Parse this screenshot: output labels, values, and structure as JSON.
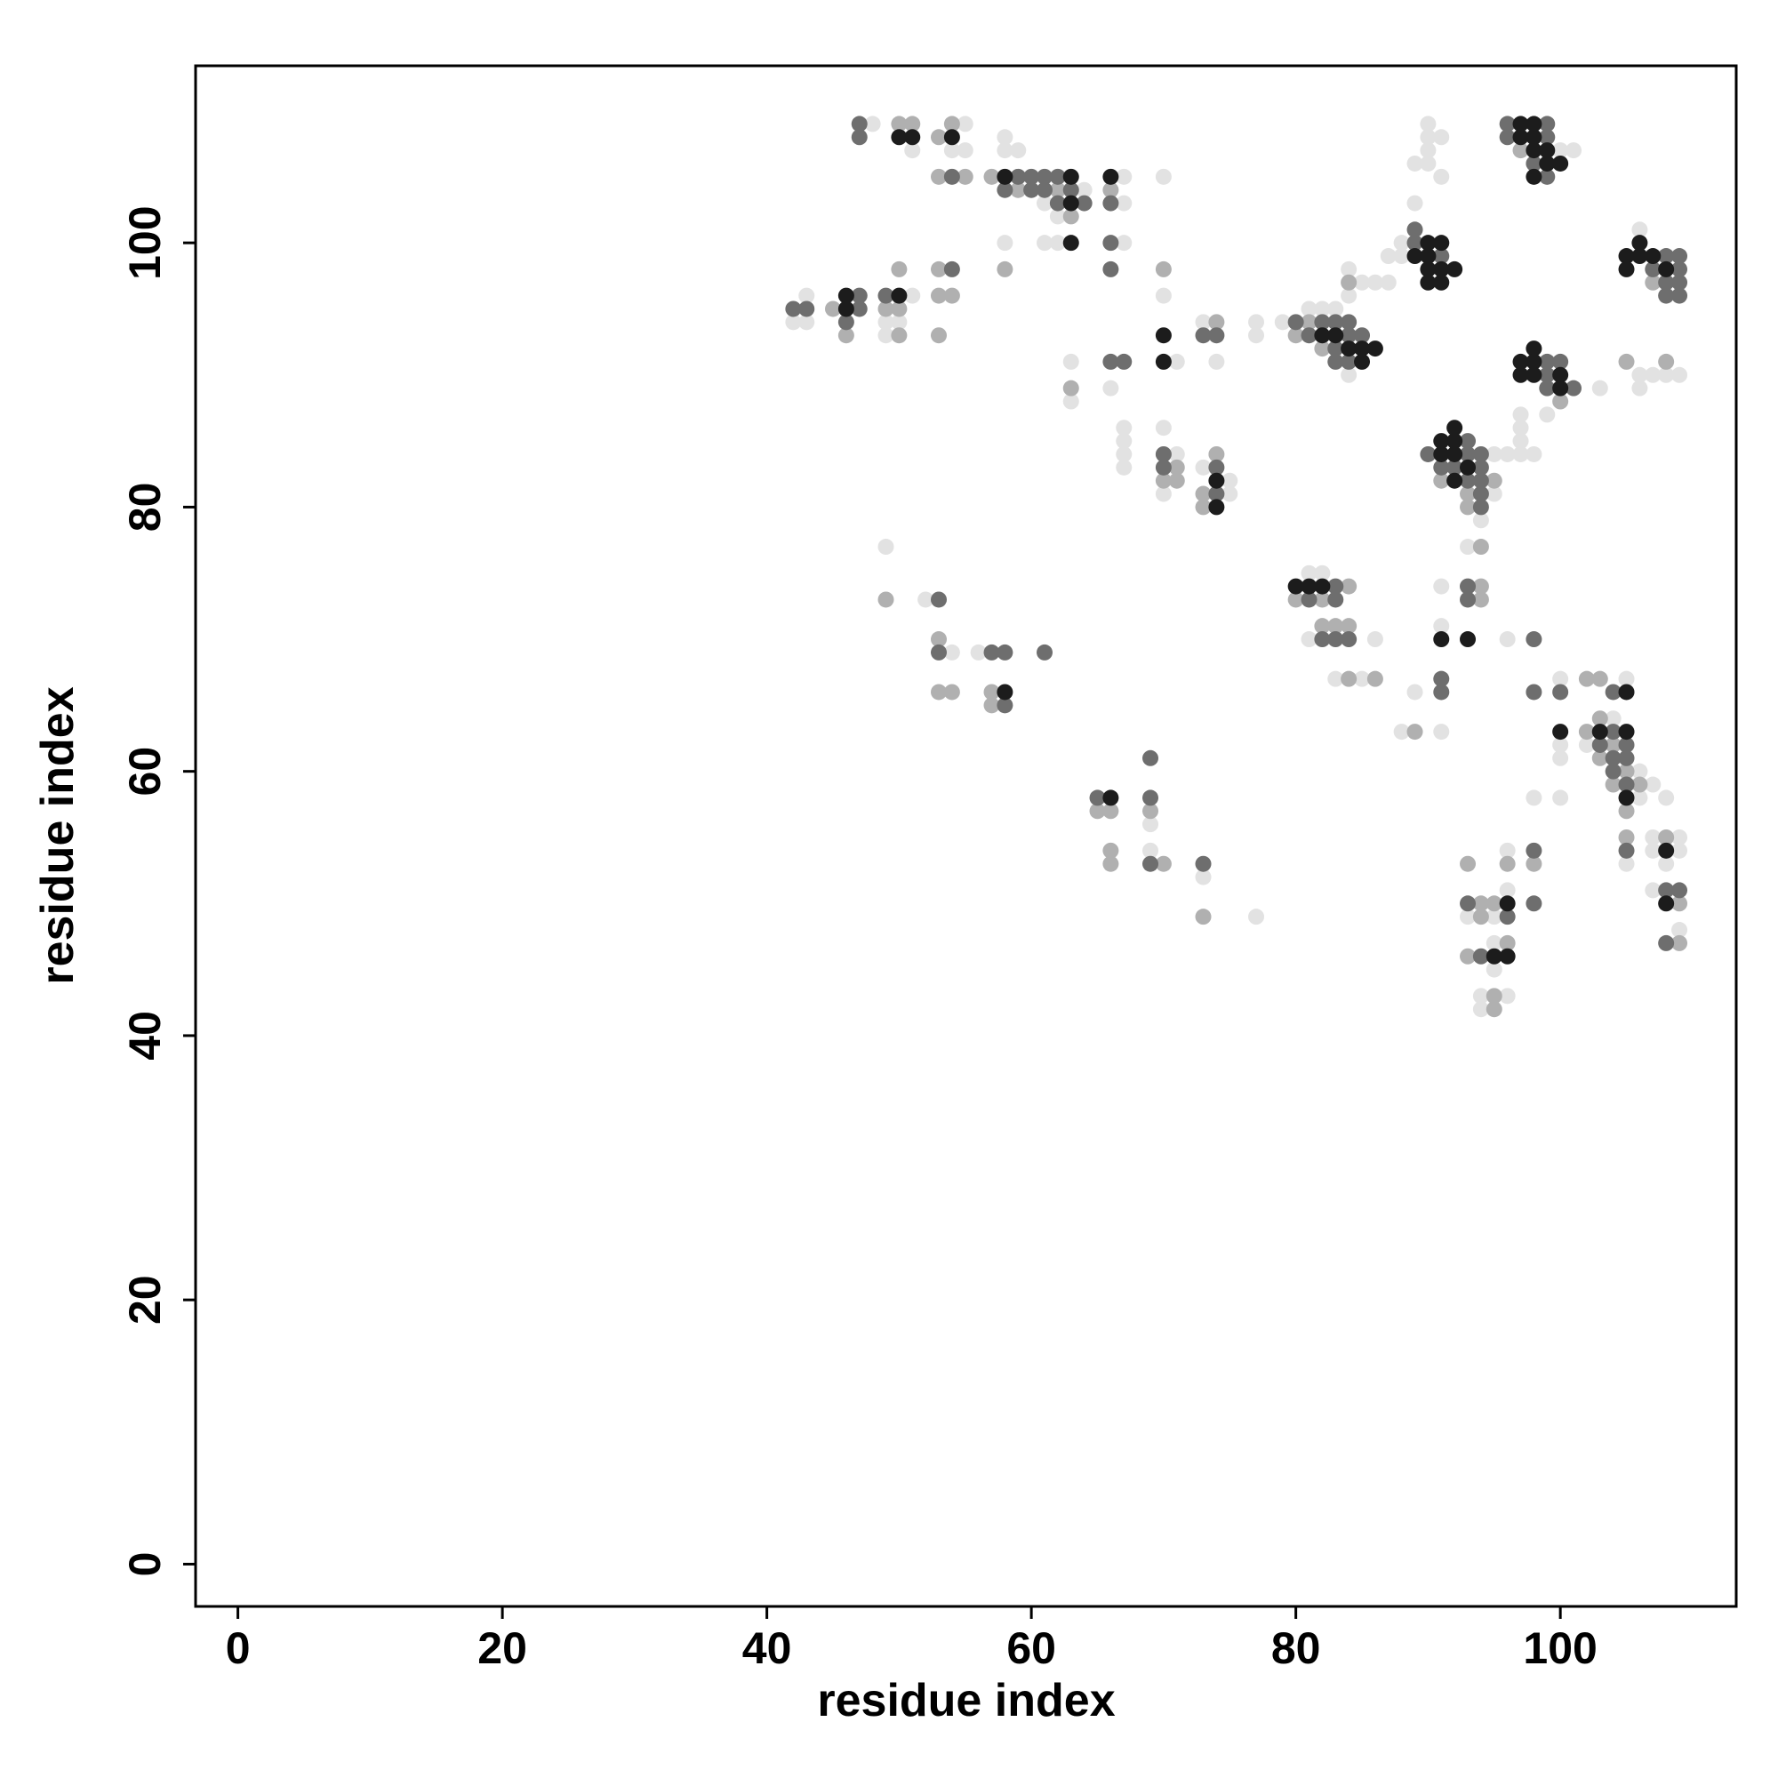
{
  "chart_data": {
    "type": "scatter",
    "xlabel": "residue index",
    "ylabel": "residue index",
    "xlim": [
      -3.2,
      113.3
    ],
    "ylim": [
      -3.2,
      113.4
    ],
    "xticks": [
      0,
      20,
      40,
      60,
      80,
      100
    ],
    "yticks": [
      0,
      20,
      40,
      60,
      80,
      100
    ],
    "series": [
      {
        "color": "#e2e2e2",
        "x": [
          48,
          55,
          51,
          54,
          55,
          58,
          58,
          59,
          67,
          70,
          64,
          61,
          67,
          62,
          58,
          61,
          62,
          67,
          70,
          43,
          42,
          43,
          51,
          49,
          50,
          49,
          73,
          77,
          77,
          79,
          81,
          82,
          83,
          84,
          85,
          86,
          87,
          84,
          84,
          71,
          74,
          63,
          63,
          66,
          67,
          67,
          67,
          67,
          70,
          71,
          70,
          73,
          75,
          75,
          90,
          90,
          91,
          90,
          89,
          90,
          91,
          89,
          88,
          88,
          87,
          100,
          101,
          106,
          103,
          99,
          97,
          97,
          97,
          97,
          98,
          106,
          106,
          107,
          108,
          109,
          95,
          96,
          95,
          94,
          93,
          91,
          91,
          82,
          81,
          81,
          86,
          83,
          85,
          96,
          89,
          88,
          91,
          49,
          52,
          54,
          56,
          100,
          100,
          100,
          105,
          104,
          102,
          106,
          107,
          106,
          108,
          98,
          100,
          107,
          109,
          107,
          109,
          105,
          108,
          107,
          109,
          69,
          69,
          73,
          77,
          96,
          93,
          95,
          95,
          95,
          94,
          96,
          94,
          96
        ],
        "y": [
          109,
          109,
          107,
          107,
          107,
          108,
          107,
          107,
          105,
          105,
          104,
          103,
          103,
          102,
          100,
          100,
          100,
          100,
          96,
          96,
          94,
          94,
          96,
          94,
          94,
          93,
          94,
          94,
          93,
          94,
          95,
          95,
          95,
          96,
          97,
          97,
          97,
          98,
          90,
          91,
          91,
          91,
          88,
          89,
          86,
          85,
          84,
          83,
          86,
          84,
          81,
          83,
          82,
          81,
          109,
          108,
          108,
          107,
          106,
          106,
          105,
          103,
          100,
          99,
          99,
          107,
          107,
          101,
          89,
          87,
          87,
          86,
          85,
          84,
          84,
          89,
          90,
          90,
          90,
          90,
          84,
          84,
          81,
          79,
          77,
          74,
          71,
          75,
          75,
          70,
          70,
          67,
          67,
          70,
          66,
          63,
          63,
          77,
          73,
          69,
          69,
          67,
          62,
          61,
          67,
          64,
          62,
          60,
          59,
          58,
          58,
          58,
          58,
          55,
          55,
          54,
          54,
          53,
          53,
          51,
          48,
          56,
          54,
          52,
          49,
          54,
          49,
          49,
          47,
          45,
          43,
          43,
          42,
          51
        ]
      },
      {
        "color": "#b0b0b0",
        "x": [
          50,
          51,
          53,
          54,
          53,
          55,
          57,
          59,
          62,
          66,
          63,
          58,
          53,
          50,
          70,
          45,
          49,
          50,
          46,
          50,
          53,
          54,
          53,
          74,
          81,
          84,
          80,
          82,
          63,
          71,
          70,
          71,
          74,
          73,
          73,
          97,
          107,
          100,
          105,
          108,
          91,
          95,
          93,
          93,
          94,
          94,
          94,
          80,
          82,
          82,
          83,
          84,
          84,
          84,
          86,
          89,
          49,
          53,
          53,
          54,
          57,
          57,
          102,
          103,
          103,
          102,
          104,
          103,
          105,
          104,
          106,
          105,
          105,
          108,
          109,
          109,
          65,
          66,
          69,
          66,
          66,
          70,
          73,
          93,
          96,
          98,
          94,
          95,
          94,
          96,
          93,
          95,
          95
        ],
        "y": [
          109,
          109,
          108,
          109,
          105,
          105,
          105,
          104,
          104,
          104,
          102,
          98,
          98,
          98,
          98,
          95,
          95,
          95,
          93,
          93,
          96,
          96,
          93,
          94,
          94,
          97,
          93,
          92,
          89,
          83,
          82,
          82,
          84,
          81,
          80,
          107,
          97,
          88,
          91,
          91,
          82,
          82,
          81,
          80,
          77,
          74,
          73,
          73,
          73,
          71,
          71,
          71,
          74,
          67,
          67,
          63,
          73,
          70,
          66,
          66,
          66,
          65,
          67,
          67,
          64,
          63,
          62,
          61,
          60,
          59,
          59,
          57,
          55,
          55,
          50,
          47,
          57,
          57,
          57,
          54,
          53,
          53,
          49,
          53,
          53,
          53,
          50,
          50,
          49,
          47,
          46,
          43,
          42
        ]
      },
      {
        "color": "#6e6e6e",
        "x": [
          47,
          47,
          54,
          59,
          60,
          61,
          62,
          58,
          60,
          61,
          63,
          62,
          64,
          66,
          66,
          54,
          66,
          42,
          43,
          47,
          47,
          46,
          49,
          73,
          74,
          80,
          82,
          83,
          84,
          81,
          84,
          85,
          83,
          83,
          84,
          66,
          67,
          70,
          70,
          74,
          74,
          89,
          89,
          91,
          96,
          99,
          96,
          99,
          98,
          99,
          108,
          109,
          107,
          109,
          108,
          109,
          108,
          109,
          99,
          100,
          99,
          99,
          101,
          93,
          90,
          93,
          94,
          91,
          92,
          94,
          93,
          94,
          94,
          94,
          93,
          93,
          83,
          81,
          83,
          82,
          83,
          84,
          98,
          91,
          91,
          53,
          53,
          57,
          58,
          61,
          58,
          98,
          100,
          104,
          104,
          103,
          105,
          104,
          105,
          104,
          105,
          105,
          108,
          109,
          108,
          65,
          69,
          69,
          69,
          73,
          98,
          93,
          98,
          96,
          94
        ],
        "y": [
          109,
          108,
          105,
          105,
          105,
          105,
          105,
          104,
          104,
          104,
          104,
          103,
          103,
          103,
          100,
          98,
          98,
          95,
          95,
          96,
          95,
          94,
          96,
          93,
          93,
          94,
          94,
          94,
          94,
          93,
          93,
          93,
          92,
          91,
          91,
          91,
          91,
          84,
          83,
          83,
          81,
          101,
          100,
          99,
          109,
          109,
          108,
          108,
          106,
          105,
          99,
          99,
          98,
          98,
          97,
          97,
          96,
          96,
          91,
          91,
          90,
          89,
          89,
          85,
          84,
          84,
          84,
          83,
          83,
          83,
          82,
          82,
          81,
          80,
          74,
          73,
          74,
          73,
          73,
          70,
          70,
          70,
          70,
          67,
          66,
          73,
          69,
          69,
          69,
          69,
          65,
          66,
          66,
          66,
          63,
          62,
          62,
          61,
          61,
          60,
          59,
          54,
          51,
          51,
          47,
          58,
          61,
          58,
          53,
          53,
          54,
          50,
          50,
          49,
          46
        ]
      },
      {
        "color": "#1c1c1c",
        "x": [
          50,
          51,
          54,
          58,
          63,
          66,
          63,
          63,
          46,
          50,
          46,
          70,
          82,
          83,
          84,
          85,
          86,
          85,
          70,
          74,
          74,
          90,
          91,
          89,
          90,
          90,
          91,
          92,
          90,
          91,
          97,
          98,
          97,
          98,
          98,
          99,
          99,
          100,
          98,
          105,
          106,
          106,
          107,
          105,
          108,
          98,
          97,
          98,
          97,
          98,
          100,
          100,
          91,
          92,
          92,
          91,
          92,
          93,
          92,
          80,
          81,
          82,
          91,
          93,
          58,
          100,
          105,
          103,
          105,
          105,
          108,
          108,
          66,
          96,
          95,
          96
        ],
        "y": [
          108,
          108,
          108,
          105,
          105,
          105,
          103,
          100,
          96,
          96,
          95,
          93,
          93,
          93,
          92,
          92,
          92,
          91,
          91,
          82,
          80,
          100,
          100,
          99,
          99,
          98,
          98,
          98,
          97,
          97,
          109,
          109,
          108,
          108,
          107,
          107,
          106,
          106,
          105,
          99,
          100,
          99,
          99,
          98,
          98,
          92,
          91,
          91,
          90,
          90,
          90,
          89,
          85,
          86,
          85,
          84,
          84,
          83,
          82,
          74,
          74,
          74,
          70,
          70,
          66,
          63,
          66,
          63,
          63,
          58,
          54,
          50,
          58,
          50,
          46,
          46
        ]
      }
    ]
  }
}
